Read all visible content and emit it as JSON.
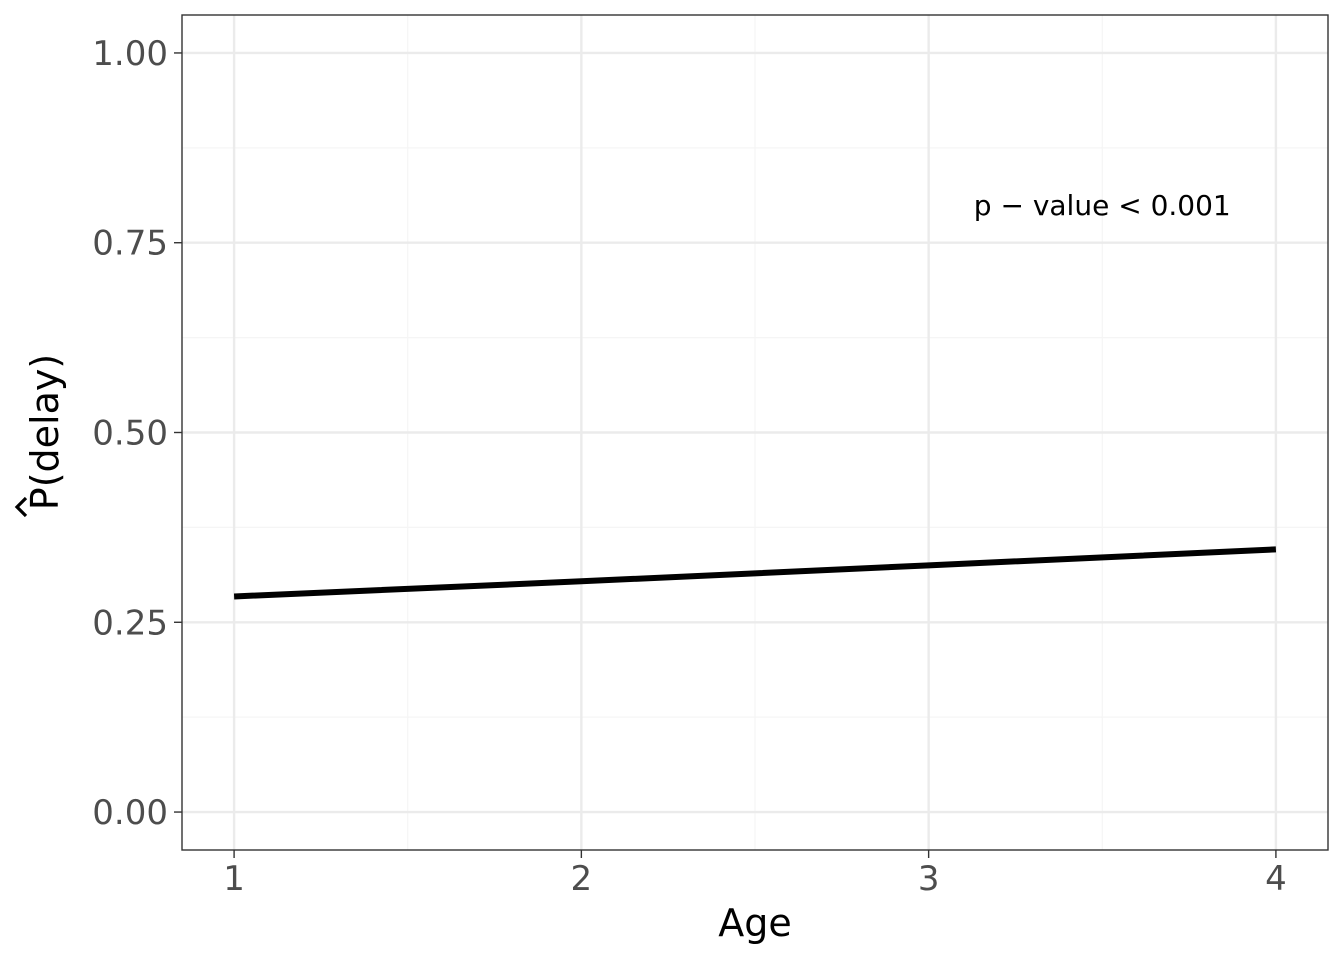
{
  "chart_data": {
    "type": "line",
    "xlabel": "Age",
    "ylabel_symbol": "P",
    "ylabel_rest": "(delay)",
    "xlim": [
      0.85,
      4.15
    ],
    "ylim": [
      -0.05,
      1.05
    ],
    "x_ticks": [
      1,
      2,
      3,
      4
    ],
    "x_tick_labels": [
      "1",
      "2",
      "3",
      "4"
    ],
    "y_ticks": [
      0.0,
      0.25,
      0.5,
      0.75,
      1.0
    ],
    "y_tick_labels": [
      "0.00",
      "0.25",
      "0.50",
      "0.75",
      "1.00"
    ],
    "grid": true,
    "series": [
      {
        "x": [
          1,
          2,
          3,
          4
        ],
        "y": [
          0.284,
          0.304,
          0.325,
          0.346
        ],
        "color": "#000000"
      }
    ],
    "annotations": [
      {
        "text": "p − value < 0.001",
        "x": 3.5,
        "y": 0.8
      }
    ]
  },
  "colors": {
    "panel_border": "#333333",
    "grid_major": "#ebebeb",
    "grid_minor": "#f5f5f5",
    "line": "#000000",
    "tick_text": "#4d4d4d"
  }
}
